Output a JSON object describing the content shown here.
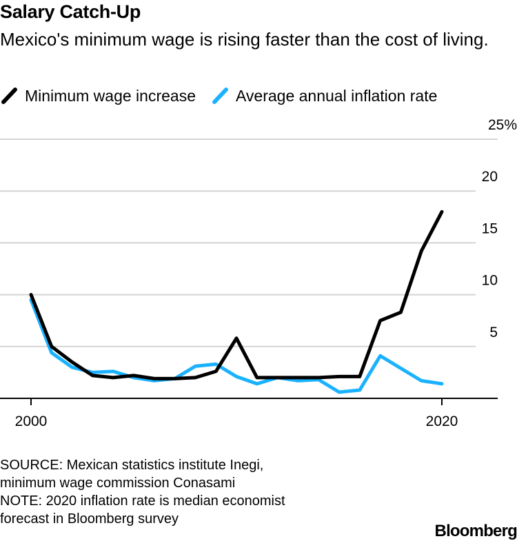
{
  "chart_data": {
    "type": "line",
    "title": "Salary Catch-Up",
    "subtitle": "Mexico's minimum wage is rising faster than the cost of living.",
    "x": [
      2000,
      2001,
      2002,
      2003,
      2004,
      2005,
      2006,
      2007,
      2008,
      2009,
      2010,
      2011,
      2012,
      2013,
      2014,
      2015,
      2016,
      2017,
      2018,
      2019,
      2020
    ],
    "series": [
      {
        "name": "Minimum wage increase",
        "color": "#000000",
        "values": [
          10.0,
          5.0,
          3.5,
          2.2,
          2.0,
          2.2,
          1.9,
          1.9,
          2.0,
          2.6,
          5.8,
          2.0,
          2.0,
          2.0,
          2.0,
          2.1,
          2.1,
          7.5,
          8.3,
          14.2,
          18.0
        ]
      },
      {
        "name": "Average annual inflation rate",
        "color": "#1ab2ff",
        "values": [
          9.5,
          4.4,
          3.0,
          2.5,
          2.6,
          2.0,
          1.7,
          1.9,
          3.1,
          3.3,
          2.1,
          1.4,
          2.0,
          1.7,
          1.8,
          0.6,
          0.8,
          4.1,
          2.9,
          1.7,
          1.4
        ]
      }
    ],
    "xticks": [
      2000,
      2020
    ],
    "xtick_labels": [
      "2000",
      "2020"
    ],
    "yticks": [
      5,
      10,
      15,
      20,
      25
    ],
    "ytick_labels": [
      "5",
      "10",
      "15",
      "20",
      "25%"
    ],
    "ylim": [
      0,
      25
    ],
    "grid": true,
    "legend_position": "top-left"
  },
  "legend": {
    "items": [
      {
        "label": "Minimum wage increase"
      },
      {
        "label": "Average annual inflation rate"
      }
    ]
  },
  "footer": {
    "source_line1": "SOURCE: Mexican statistics institute Inegi,",
    "source_line2": "minimum wage commission Conasami",
    "note_line1": "NOTE: 2020 inflation rate is median economist",
    "note_line2": "forecast in Bloomberg survey"
  },
  "brand": "Bloomberg"
}
